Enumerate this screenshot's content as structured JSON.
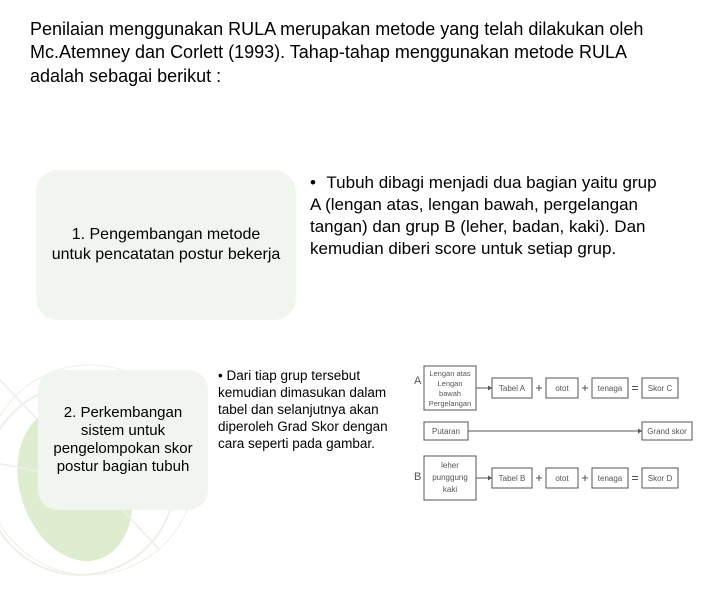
{
  "intro_text": "Penilaian menggunakan RULA merupakan metode yang telah dilakukan oleh Mc.Atemney dan Corlett (1993). Tahap-tahap menggunakan metode RULA adalah sebagai berikut :",
  "card1_text": "1. Pengembangan metode untuk pencatatan postur bekerja",
  "bullet1_text": "Tubuh dibagi menjadi dua bagian yaitu grup A (lengan atas, lengan bawah, pergelangan tangan) dan grup B (leher, badan, kaki). Dan kemudian diberi score untuk setiap grup.",
  "card2_text": "2. Perkembangan sistem untuk pengelompokan skor postur bagian tubuh",
  "bullet2_text": "Dari tiap grup tersebut kemudian dimasukan dalam tabel dan selanjutnya akan diperoleh Grad Skor dengan cara seperti pada gambar.",
  "diagram": {
    "groupA_label": "A",
    "groupA_items": [
      "Lengan atas",
      "Lengan",
      "bawah",
      "Pergelangan"
    ],
    "groupB_label": "B",
    "groupB_items": [
      "leher",
      "punggung",
      "kaki"
    ],
    "tabelA": "Tabel A",
    "tabelB": "Tabel B",
    "otot": "otot",
    "tenaga": "tenaga",
    "skorC": "Skor C",
    "skorD": "Skor D",
    "putaran": "Putaran",
    "grand": "Grand skor",
    "box_stroke": "#555555",
    "text_color": "#555555",
    "font_size_small": 8,
    "font_size_label": 11
  },
  "colors": {
    "card_bg": "#f1f5f0",
    "text": "#000000",
    "deco_green": "#7fb843",
    "deco_line": "#b8c49e"
  }
}
